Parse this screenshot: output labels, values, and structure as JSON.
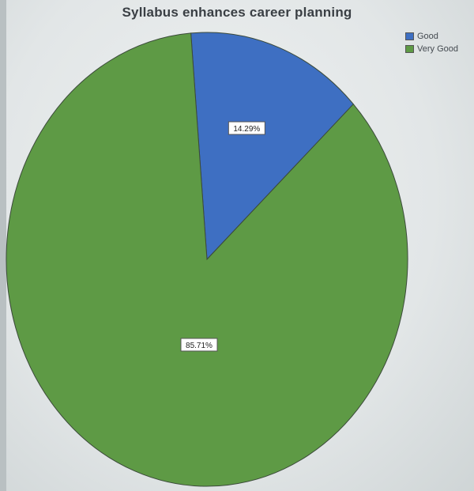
{
  "chart_data": {
    "type": "pie",
    "title": "Syllabus enhances career planning",
    "legend_position": "top-right",
    "slices": [
      {
        "name": "Good",
        "value": 14.29,
        "label": "14.29%",
        "color": "#3e6fc2"
      },
      {
        "name": "Very Good",
        "value": 85.71,
        "label": "85.71%",
        "color": "#5e9a45"
      }
    ]
  }
}
